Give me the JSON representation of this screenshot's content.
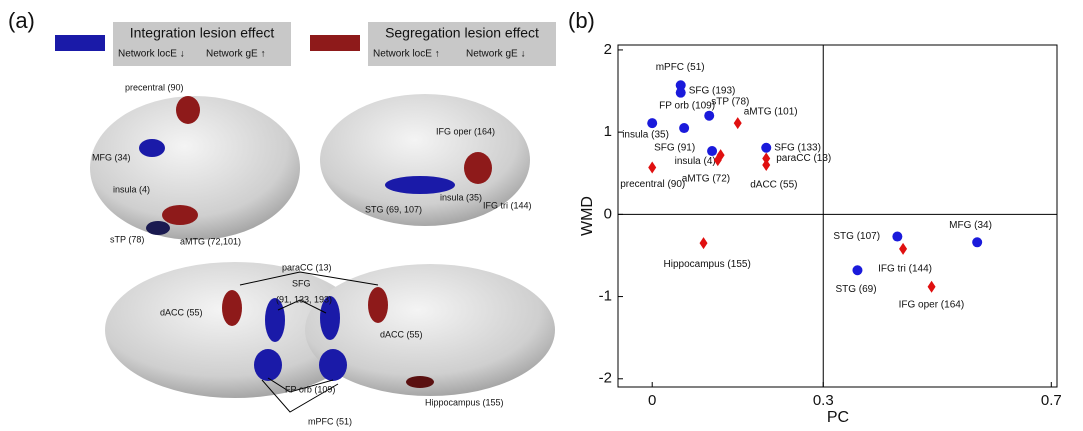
{
  "panel_a": {
    "panel_label": "(a)",
    "legend_notes": [
      "Network locE ↓",
      "Network gE ↑",
      "Network locE ↑",
      "Network gE ↓"
    ],
    "labels": [
      "precentral (90)",
      "MFG (34)",
      "insula (4)",
      "sTP (78)",
      "aMTG (72,101)",
      "IFG oper (164)",
      "STG (69, 107)",
      "insula (35)",
      "IFG tri (144)",
      "paraCC (13)",
      "SFG",
      "(91, 133, 193)",
      "dACC (55)",
      "dACC (55)",
      "FP orb (109)",
      "mPFC (51)",
      "Hippocampus (155)"
    ]
  },
  "chart_data": {
    "type": "scatter",
    "panel_label": "(b)",
    "x_label": "PC",
    "y_label": "WMD",
    "xlim": [
      -0.06,
      0.71
    ],
    "ylim": [
      -2.1,
      2.06
    ],
    "xticks": [
      0,
      0.3,
      0.7
    ],
    "yticks": [
      -2,
      -1,
      0,
      1,
      2
    ],
    "vlines": [
      0.3
    ],
    "hlines": [
      0
    ],
    "series": [
      {
        "name": "Integration lesion effect",
        "color": "#1a1adb",
        "marker": "circle",
        "labels": [
          "insula (35)",
          "mPFC (51)",
          "SFG (193)",
          "FP orb (109)",
          "sTP (78)",
          "SFG (91)",
          "SFG (133)",
          "STG (107)",
          "STG (69)",
          "MFG (34)"
        ],
        "x": [
          0.0,
          0.05,
          0.05,
          0.056,
          0.1,
          0.105,
          0.2,
          0.43,
          0.36,
          0.57
        ],
        "values": [
          1.11,
          1.57,
          1.48,
          1.05,
          1.2,
          0.77,
          0.81,
          -0.27,
          -0.68,
          -0.34
        ]
      },
      {
        "name": "Segregation lesion effect",
        "color": "#e01010",
        "marker": "diamond",
        "labels": [
          "aMTG (101)",
          "insula (4)",
          "aMTG (72)",
          "paraCC (13)",
          "dACC (55)",
          "precentral (90)",
          "Hippocampus (155)",
          "IFG tri (144)",
          "IFG oper (164)"
        ],
        "x": [
          0.15,
          0.12,
          0.115,
          0.2,
          0.2,
          0.0,
          0.09,
          0.44,
          0.49
        ],
        "values": [
          1.11,
          0.72,
          0.66,
          0.68,
          0.6,
          0.57,
          -0.35,
          -0.42,
          -0.88
        ]
      }
    ]
  }
}
